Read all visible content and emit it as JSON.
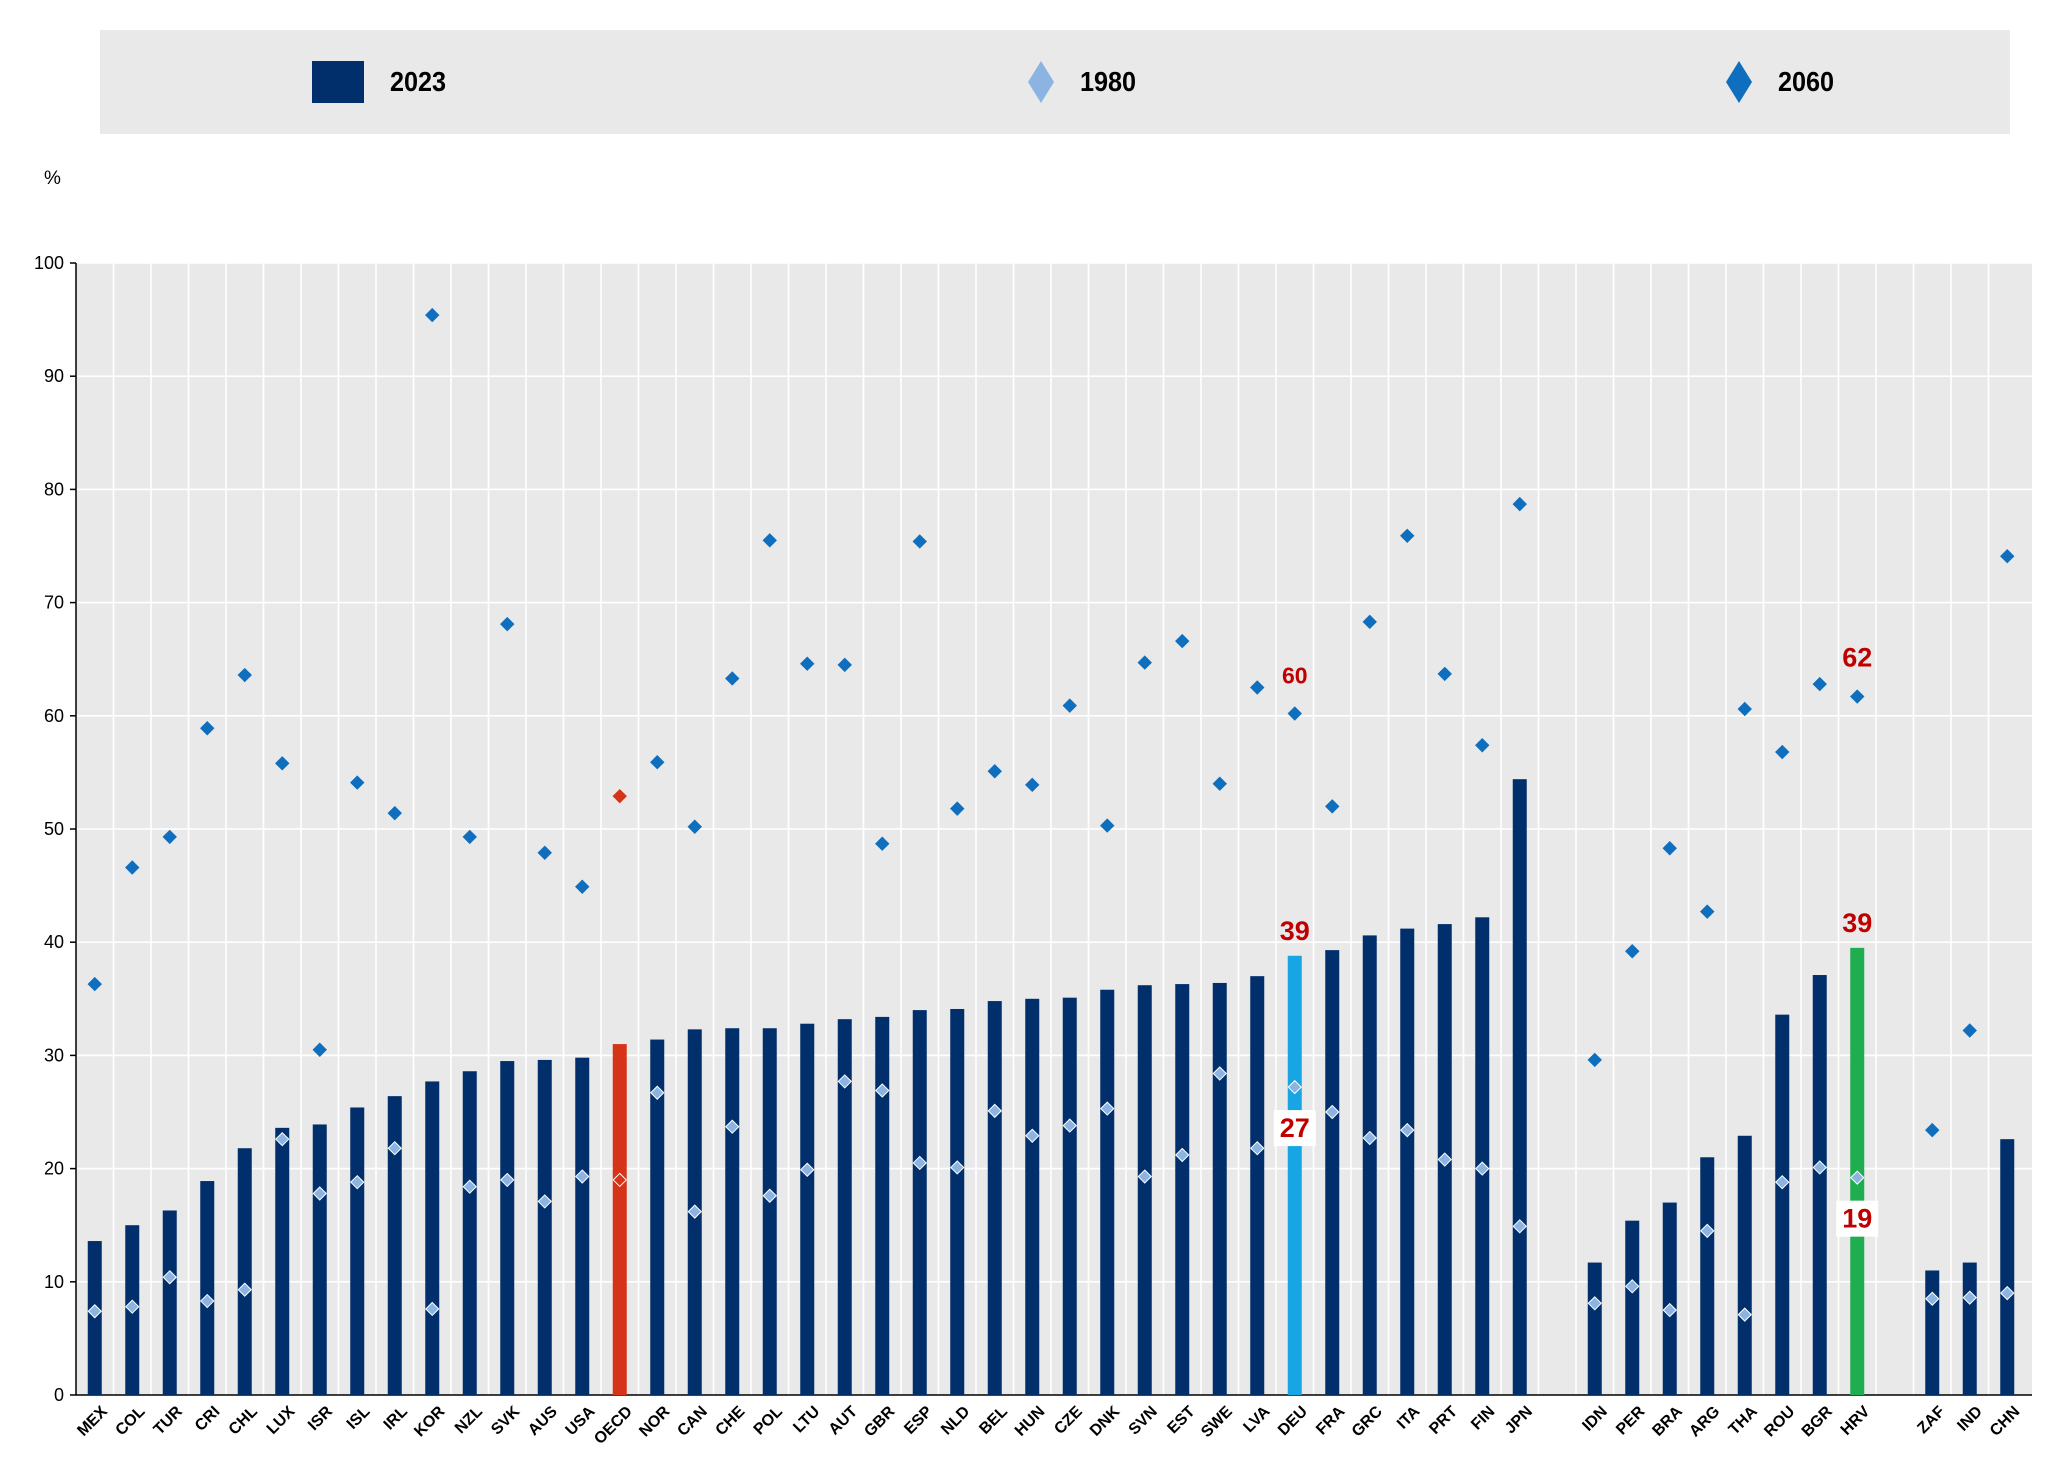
{
  "legend": {
    "items": [
      {
        "label": "2023",
        "color": "#002f6c",
        "shape": "rect"
      },
      {
        "label": "1980",
        "color": "#8cb4e2",
        "shape": "diamond"
      },
      {
        "label": "2060",
        "color": "#0f6fbe",
        "shape": "diamond"
      }
    ]
  },
  "chart_data": {
    "type": "bar",
    "title": "",
    "xlabel": "",
    "ylabel": "%",
    "ylim": [
      0,
      100
    ],
    "yticks": [
      0,
      10,
      20,
      30,
      40,
      50,
      60,
      70,
      80,
      90,
      100
    ],
    "grid": true,
    "groups": [
      {
        "categories": [
          "MEX",
          "COL",
          "TUR",
          "CRI",
          "CHL",
          "LUX",
          "ISR",
          "ISL",
          "IRL",
          "KOR",
          "NZL",
          "SVK",
          "AUS",
          "USA",
          "OECD",
          "NOR",
          "CAN",
          "CHE",
          "POL",
          "LTU",
          "AUT",
          "GBR",
          "ESP",
          "NLD",
          "BEL",
          "HUN",
          "CZE",
          "DNK",
          "SVN",
          "EST",
          "SWE",
          "LVA",
          "DEU",
          "FRA",
          "GRC",
          "ITA",
          "PRT",
          "FIN",
          "JPN"
        ]
      },
      {
        "categories": [
          "IDN",
          "PER",
          "BRA",
          "ARG",
          "THA",
          "ROU",
          "BGR",
          "HRV"
        ]
      },
      {
        "categories": [
          "ZAF",
          "IND",
          "CHN"
        ]
      }
    ],
    "categories": [
      "MEX",
      "COL",
      "TUR",
      "CRI",
      "CHL",
      "LUX",
      "ISR",
      "ISL",
      "IRL",
      "KOR",
      "NZL",
      "SVK",
      "AUS",
      "USA",
      "OECD",
      "NOR",
      "CAN",
      "CHE",
      "POL",
      "LTU",
      "AUT",
      "GBR",
      "ESP",
      "NLD",
      "BEL",
      "HUN",
      "CZE",
      "DNK",
      "SVN",
      "EST",
      "SWE",
      "LVA",
      "DEU",
      "FRA",
      "GRC",
      "ITA",
      "PRT",
      "FIN",
      "JPN",
      "IDN",
      "PER",
      "BRA",
      "ARG",
      "THA",
      "ROU",
      "BGR",
      "HRV",
      "ZAF",
      "IND",
      "CHN"
    ],
    "series": [
      {
        "name": "2023",
        "type": "bar",
        "color": "#002f6c",
        "values": [
          13.6,
          15.0,
          16.3,
          18.9,
          21.8,
          23.6,
          23.9,
          25.4,
          26.4,
          27.7,
          28.6,
          29.5,
          29.6,
          29.8,
          31.0,
          31.4,
          32.3,
          32.4,
          32.4,
          32.8,
          33.2,
          33.4,
          34.0,
          34.1,
          34.8,
          35.0,
          35.1,
          35.8,
          36.2,
          36.3,
          36.4,
          37.0,
          38.8,
          39.3,
          40.6,
          41.2,
          41.6,
          42.2,
          54.4,
          11.7,
          15.4,
          17.0,
          21.0,
          22.9,
          33.6,
          37.1,
          39.5,
          11.0,
          11.7,
          22.6
        ]
      },
      {
        "name": "1980",
        "type": "diamond",
        "color": "#8cb4e2",
        "values": [
          7.4,
          7.8,
          10.4,
          8.3,
          9.3,
          22.6,
          17.8,
          18.8,
          21.8,
          7.6,
          18.4,
          19.0,
          17.1,
          19.3,
          19.0,
          26.7,
          16.2,
          23.7,
          17.6,
          19.9,
          27.7,
          26.9,
          20.5,
          20.1,
          25.1,
          22.9,
          23.8,
          25.3,
          19.3,
          21.2,
          28.4,
          21.8,
          27.2,
          25.0,
          22.7,
          23.4,
          20.8,
          20.0,
          14.9,
          8.1,
          9.6,
          7.5,
          14.5,
          7.1,
          18.8,
          20.1,
          19.2,
          8.5,
          8.6,
          9.0
        ]
      },
      {
        "name": "2060",
        "type": "diamond",
        "color": "#0f6fbe",
        "values": [
          36.3,
          46.6,
          49.3,
          58.9,
          63.6,
          55.8,
          30.5,
          54.1,
          51.4,
          95.4,
          49.3,
          68.1,
          47.9,
          44.9,
          52.9,
          55.9,
          50.2,
          63.3,
          75.5,
          64.6,
          64.5,
          48.7,
          75.4,
          51.8,
          55.1,
          53.9,
          60.9,
          50.3,
          64.7,
          66.6,
          54.0,
          62.5,
          60.2,
          52.0,
          68.3,
          75.9,
          63.7,
          57.4,
          78.7,
          29.6,
          39.2,
          48.3,
          42.7,
          60.6,
          56.8,
          62.8,
          61.7,
          23.4,
          32.2,
          74.1
        ]
      }
    ],
    "highlights": [
      {
        "category": "OECD",
        "bar_color": "#d63418",
        "marker_color": "#d63418"
      },
      {
        "category": "DEU",
        "bar_color": "#17a5e3"
      },
      {
        "category": "HRV",
        "bar_color": "#1fad4f"
      }
    ],
    "annotations": [
      {
        "category": "DEU",
        "series": "2060",
        "text": "60"
      },
      {
        "category": "DEU",
        "series": "2023",
        "text": "39"
      },
      {
        "category": "DEU",
        "series": "1980",
        "text": "27"
      },
      {
        "category": "HRV",
        "series": "2060",
        "text": "62"
      },
      {
        "category": "HRV",
        "series": "2023",
        "text": "39"
      },
      {
        "category": "HRV",
        "series": "1980",
        "text": "19"
      }
    ]
  }
}
